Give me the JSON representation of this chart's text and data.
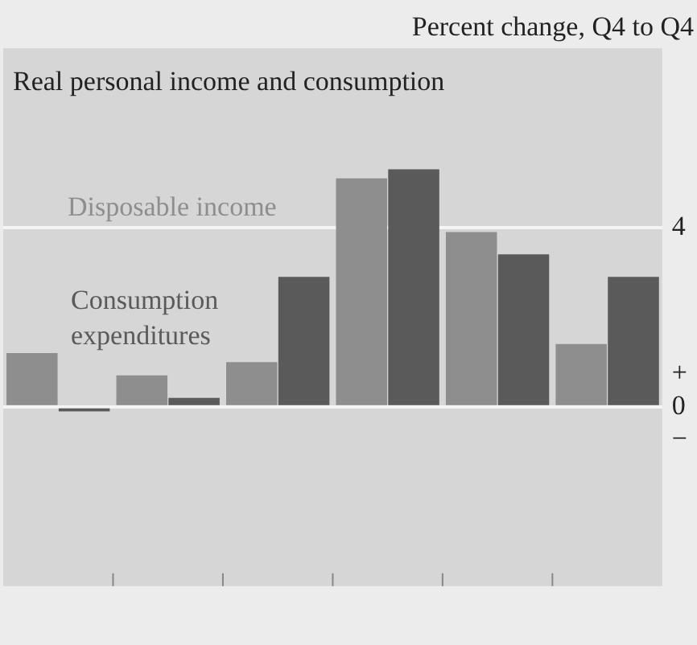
{
  "chart_data": {
    "type": "bar",
    "title": "Real personal income and consumption",
    "ylabel": "Percent change, Q4 to Q4",
    "categories": [
      null,
      null,
      null,
      null,
      null,
      null
    ],
    "series": [
      {
        "name": "Disposable income",
        "color": "#8e8e8e",
        "values": [
          1.2,
          0.7,
          1.0,
          5.1,
          3.9,
          1.4
        ]
      },
      {
        "name": "Consumption expenditures",
        "color": "#5a5a5a",
        "values": [
          -0.1,
          0.2,
          2.9,
          5.3,
          3.4,
          2.9
        ]
      }
    ],
    "ylim": [
      -4,
      8
    ],
    "yticks": [
      {
        "value": 0,
        "label": "+0−"
      },
      4
    ],
    "grid": "y",
    "legend": false
  }
}
